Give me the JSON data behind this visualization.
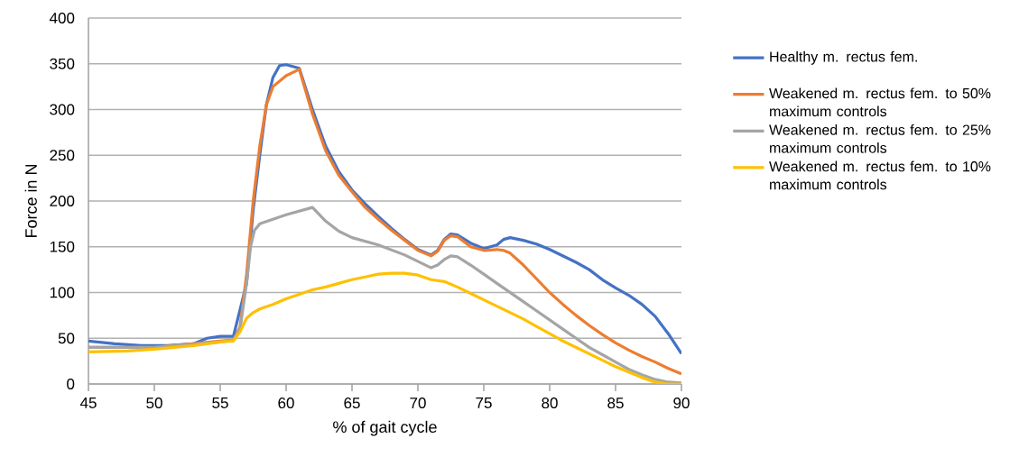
{
  "chart_data": {
    "type": "line",
    "xlabel": "% of gait cycle",
    "ylabel": "Force in N",
    "xlim": [
      45,
      90
    ],
    "xticks": [
      45,
      50,
      55,
      60,
      65,
      70,
      75,
      80,
      85,
      90
    ],
    "ylim": [
      0,
      400
    ],
    "yticks": [
      0,
      50,
      100,
      150,
      200,
      250,
      300,
      350,
      400
    ],
    "grid": "y",
    "legend": "right",
    "marker": "none",
    "line_style": "solid",
    "series": [
      {
        "name": "Healthy m. rectus fem.",
        "color": "#4472c4",
        "x": [
          45,
          47,
          49,
          51,
          53,
          54,
          55,
          56,
          57,
          57.5,
          58,
          58.5,
          59,
          59.5,
          60,
          61,
          62,
          63,
          64,
          65,
          66,
          67,
          68,
          69,
          70,
          71,
          71.5,
          72,
          72.5,
          73,
          74,
          75,
          76,
          76.5,
          77,
          78,
          79,
          80,
          81,
          82,
          83,
          84,
          85,
          86,
          87,
          88,
          89,
          90
        ],
        "values": [
          47,
          44,
          42,
          42,
          44,
          50,
          52,
          52,
          110,
          190,
          250,
          305,
          335,
          348,
          349,
          345,
          300,
          260,
          232,
          212,
          197,
          183,
          170,
          158,
          147,
          141,
          146,
          158,
          164,
          163,
          154,
          148,
          152,
          158,
          160,
          157,
          153,
          147,
          140,
          133,
          125,
          114,
          105,
          97,
          87,
          74,
          55,
          33
        ]
      },
      {
        "name": "Weakened m. rectus fem. to 50% maximum controls",
        "color": "#ed7d31",
        "x": [
          45,
          50,
          55,
          56,
          56.5,
          57,
          57.5,
          58,
          58.5,
          59,
          60,
          61,
          62,
          63,
          64,
          65,
          66,
          67,
          68,
          69,
          70,
          71,
          71.5,
          72,
          72.5,
          73,
          74,
          75,
          76,
          76.5,
          77,
          78,
          79,
          80,
          81,
          82,
          83,
          84,
          85,
          86,
          87,
          88,
          89,
          90
        ],
        "values": [
          40,
          40,
          47,
          48,
          62,
          120,
          200,
          260,
          305,
          325,
          337,
          344,
          295,
          255,
          228,
          210,
          193,
          180,
          168,
          157,
          146,
          140,
          145,
          157,
          162,
          161,
          150,
          146,
          147,
          146,
          143,
          130,
          115,
          100,
          87,
          75,
          64,
          54,
          45,
          37,
          30,
          24,
          17,
          11
        ]
      },
      {
        "name": "Weakened m. rectus fem. to 25% maximum controls",
        "color": "#a5a5a5",
        "x": [
          45,
          50,
          55,
          56,
          56.5,
          57,
          57.3,
          57.6,
          58,
          60,
          62,
          63,
          64,
          65,
          67,
          69,
          70,
          71,
          71.5,
          72,
          72.5,
          73,
          74,
          75,
          76,
          77,
          78,
          79,
          80,
          81,
          82,
          83,
          84,
          85,
          86,
          87,
          88,
          89,
          90
        ],
        "values": [
          40,
          40,
          46,
          48,
          60,
          110,
          150,
          168,
          175,
          185,
          193,
          178,
          167,
          160,
          152,
          141,
          134,
          127,
          130,
          136,
          140,
          139,
          130,
          120,
          110,
          100,
          90,
          80,
          70,
          60,
          50,
          40,
          32,
          24,
          16,
          10,
          5,
          2,
          1
        ]
      },
      {
        "name": "Weakened m. rectus fem. to 10% maximum controls",
        "color": "#ffc000",
        "x": [
          45,
          48,
          50,
          53,
          55,
          56,
          56.5,
          57,
          57.5,
          58,
          59,
          60,
          61,
          62,
          63,
          64,
          65,
          66,
          67,
          68,
          69,
          70,
          71,
          72,
          73,
          74,
          75,
          76,
          77,
          78,
          79,
          80,
          81,
          82,
          83,
          84,
          85,
          86,
          87,
          88,
          89,
          90
        ],
        "values": [
          35,
          36,
          38,
          42,
          46,
          47,
          57,
          72,
          78,
          82,
          87,
          93,
          98,
          103,
          106,
          110,
          114,
          117,
          120,
          121,
          121,
          119,
          114,
          112,
          106,
          99,
          92,
          85,
          78,
          71,
          63,
          55,
          47,
          40,
          33,
          26,
          19,
          13,
          7,
          2,
          0,
          0
        ]
      }
    ]
  }
}
